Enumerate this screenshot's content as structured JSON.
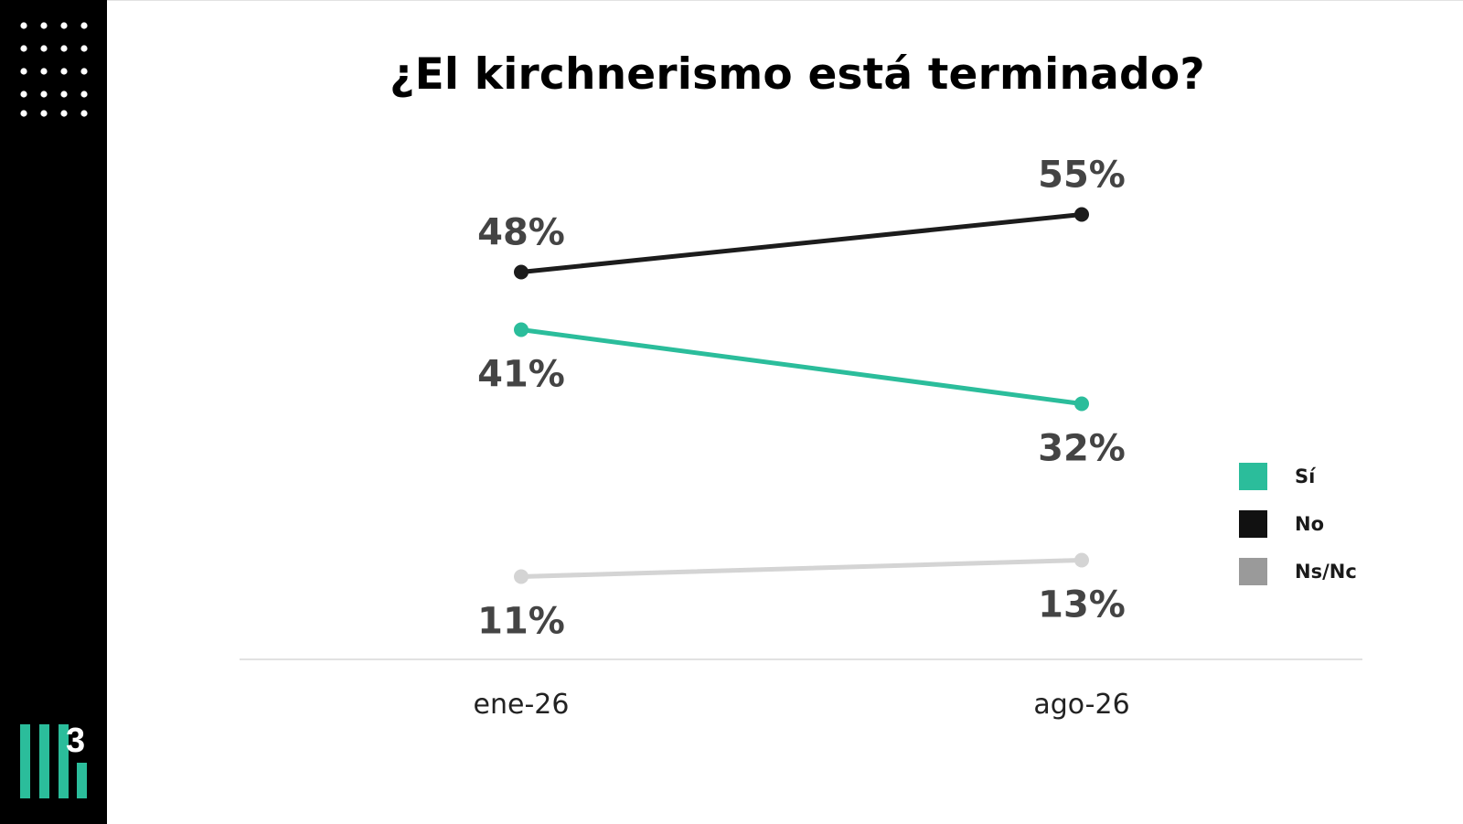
{
  "chart_data": {
    "type": "line",
    "title": "¿El kirchnerismo está terminado?",
    "categories": [
      "ene-26",
      "ago-26"
    ],
    "ylim": [
      0,
      60
    ],
    "grid": false,
    "legend_position": "right",
    "series": [
      {
        "name": "Sí",
        "values": [
          41,
          32
        ],
        "labels": [
          "41%",
          "32%"
        ],
        "color": "#2bbd9b",
        "label_position": "below"
      },
      {
        "name": "No",
        "values": [
          48,
          55
        ],
        "labels": [
          "48%",
          "55%"
        ],
        "color": "#1c1c1c",
        "label_position": "above"
      },
      {
        "name": "Ns/Nc",
        "values": [
          11,
          13
        ],
        "labels": [
          "11%",
          "13%"
        ],
        "color": "#d4d4d4",
        "label_position": "below"
      }
    ]
  },
  "legend": {
    "items": [
      {
        "label": "Sí",
        "color": "#2bbd9b"
      },
      {
        "label": "No",
        "color": "#111111"
      },
      {
        "label": "Ns/Nc",
        "color": "#9a9a9a"
      }
    ]
  },
  "brand": {
    "logo_text": "3",
    "accent_color": "#2bbd9b",
    "logo_icon": "bar-chart-3-logo-icon"
  }
}
